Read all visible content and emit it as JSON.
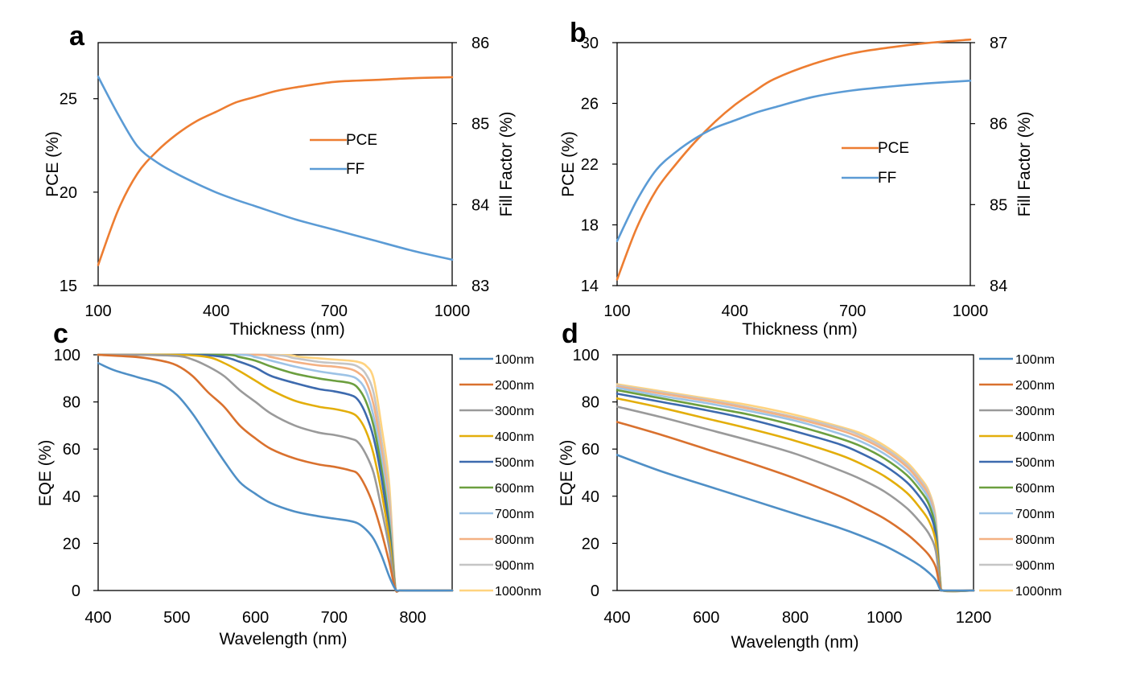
{
  "chart_data": [
    {
      "panel": "a",
      "type": "line",
      "xlabel": "Thickness (nm)",
      "ylabel": "PCE (%)",
      "y2label": "Fill Factor (%)",
      "xlim": [
        100,
        1000
      ],
      "ylim": [
        15,
        28
      ],
      "y2lim": [
        83,
        86
      ],
      "xticks": [
        100,
        400,
        700,
        1000
      ],
      "yticks": [
        15,
        20,
        25
      ],
      "y2ticks": [
        83,
        84,
        85,
        86
      ],
      "legend_position": "center-right",
      "colors": {
        "PCE": "#ED7D31",
        "FF": "#5B9BD5"
      },
      "series": [
        {
          "name": "PCE",
          "axis": "left",
          "x": [
            100,
            150,
            200,
            250,
            300,
            350,
            400,
            450,
            500,
            550,
            600,
            700,
            800,
            900,
            1000
          ],
          "y": [
            16.1,
            19.0,
            21.0,
            22.2,
            23.1,
            23.8,
            24.3,
            24.8,
            25.1,
            25.4,
            25.6,
            25.9,
            26.0,
            26.1,
            26.15
          ]
        },
        {
          "name": "FF",
          "axis": "right",
          "x": [
            100,
            150,
            200,
            250,
            300,
            350,
            400,
            450,
            500,
            600,
            700,
            800,
            900,
            1000
          ],
          "y": [
            85.58,
            85.12,
            84.72,
            84.52,
            84.38,
            84.26,
            84.15,
            84.06,
            83.98,
            83.82,
            83.69,
            83.56,
            83.43,
            83.32
          ]
        }
      ]
    },
    {
      "panel": "b",
      "type": "line",
      "xlabel": "Thickness (nm)",
      "ylabel": "PCE (%)",
      "y2label": "Fill Factor (%)",
      "xlim": [
        100,
        1000
      ],
      "ylim": [
        14,
        30
      ],
      "y2lim": [
        84,
        87
      ],
      "xticks": [
        100,
        400,
        700,
        1000
      ],
      "yticks": [
        14,
        18,
        22,
        26,
        30
      ],
      "y2ticks": [
        84,
        85,
        86,
        87
      ],
      "legend_position": "center-right",
      "colors": {
        "PCE": "#ED7D31",
        "FF": "#5B9BD5"
      },
      "series": [
        {
          "name": "PCE",
          "axis": "left",
          "x": [
            100,
            150,
            200,
            250,
            300,
            350,
            400,
            450,
            500,
            600,
            700,
            800,
            900,
            1000
          ],
          "y": [
            14.4,
            17.8,
            20.3,
            22.0,
            23.5,
            24.8,
            25.9,
            26.8,
            27.6,
            28.6,
            29.3,
            29.7,
            30.0,
            30.2
          ]
        },
        {
          "name": "FF",
          "axis": "right",
          "x": [
            100,
            150,
            200,
            250,
            300,
            350,
            400,
            450,
            500,
            600,
            700,
            800,
            900,
            1000
          ],
          "y": [
            84.55,
            85.05,
            85.43,
            85.65,
            85.82,
            85.95,
            86.04,
            86.13,
            86.2,
            86.33,
            86.41,
            86.46,
            86.5,
            86.53
          ]
        }
      ]
    },
    {
      "panel": "c",
      "type": "line",
      "xlabel": "Wavelength (nm)",
      "ylabel": "EQE (%)",
      "xlim": [
        400,
        850
      ],
      "ylim": [
        0,
        100
      ],
      "xticks": [
        400,
        500,
        600,
        700,
        800
      ],
      "yticks": [
        0,
        20,
        40,
        60,
        80,
        100
      ],
      "legend_position": "right",
      "series": [
        {
          "name": "100nm",
          "color": "#4F8FC6",
          "x": [
            400,
            420,
            450,
            480,
            500,
            520,
            540,
            560,
            580,
            600,
            620,
            650,
            680,
            700,
            720,
            730,
            740,
            750,
            760,
            770,
            778,
            785,
            850
          ],
          "y": [
            96.5,
            93.5,
            90.5,
            87.5,
            83,
            75,
            65,
            55,
            46,
            41,
            37,
            33.5,
            31.5,
            30.5,
            29.5,
            28.5,
            26,
            22,
            15,
            6,
            0.5,
            0,
            0
          ]
        },
        {
          "name": "200nm",
          "color": "#D9712E",
          "x": [
            400,
            450,
            480,
            500,
            520,
            540,
            560,
            580,
            600,
            620,
            650,
            680,
            700,
            720,
            730,
            740,
            750,
            760,
            770,
            778,
            785,
            850
          ],
          "y": [
            100,
            99,
            97.5,
            95.5,
            91,
            84,
            78,
            70,
            64.5,
            60,
            56,
            53.5,
            52.5,
            51,
            49.5,
            44,
            36,
            25,
            12,
            0.5,
            0,
            0
          ]
        },
        {
          "name": "300nm",
          "color": "#9A9A9A",
          "x": [
            400,
            450,
            500,
            520,
            540,
            560,
            580,
            600,
            620,
            650,
            680,
            700,
            720,
            730,
            740,
            750,
            760,
            770,
            778,
            785,
            850
          ],
          "y": [
            100,
            100,
            99.5,
            98,
            95,
            91,
            85,
            80,
            75,
            70,
            67,
            66,
            64.5,
            63,
            58,
            50,
            35,
            18,
            0.5,
            0,
            0
          ]
        },
        {
          "name": "400nm",
          "color": "#E3AE0B",
          "x": [
            400,
            500,
            540,
            560,
            580,
            600,
            620,
            650,
            680,
            700,
            720,
            730,
            740,
            750,
            760,
            770,
            778,
            785,
            850
          ],
          "y": [
            100,
            100,
            99,
            96.5,
            93,
            89,
            85,
            80.5,
            78,
            77,
            75.5,
            73.5,
            68,
            58,
            42,
            22,
            0.5,
            0,
            0
          ]
        },
        {
          "name": "500nm",
          "color": "#3D6AAE",
          "x": [
            400,
            520,
            560,
            580,
            600,
            620,
            650,
            680,
            700,
            720,
            730,
            740,
            750,
            760,
            770,
            778,
            785,
            850
          ],
          "y": [
            100,
            100,
            99,
            97,
            94.5,
            91,
            88,
            85.5,
            84.5,
            83,
            81,
            75,
            65,
            48,
            25,
            0.5,
            0,
            0
          ]
        },
        {
          "name": "600nm",
          "color": "#6C9F3F",
          "x": [
            400,
            560,
            580,
            600,
            620,
            650,
            680,
            700,
            720,
            730,
            740,
            750,
            760,
            770,
            778,
            785,
            850
          ],
          "y": [
            100,
            100,
            99,
            97.5,
            95,
            92,
            90,
            89,
            88,
            86,
            80.5,
            70,
            52,
            28,
            0.5,
            0,
            0
          ]
        },
        {
          "name": "700nm",
          "color": "#9DC3E6",
          "x": [
            400,
            580,
            600,
            620,
            650,
            680,
            700,
            720,
            730,
            740,
            750,
            760,
            770,
            778,
            785,
            850
          ],
          "y": [
            100,
            100,
            99,
            97.5,
            95,
            93,
            92,
            91,
            89.5,
            85,
            74,
            56,
            32,
            0.5,
            0,
            0
          ]
        },
        {
          "name": "800nm",
          "color": "#F4B183",
          "x": [
            400,
            600,
            620,
            650,
            680,
            700,
            720,
            730,
            740,
            750,
            760,
            770,
            778,
            785,
            850
          ],
          "y": [
            100,
            100,
            99,
            97,
            95.5,
            95,
            94,
            92.5,
            89,
            79,
            60,
            36,
            0.5,
            0,
            0
          ]
        },
        {
          "name": "900nm",
          "color": "#C5C5C5",
          "x": [
            400,
            610,
            650,
            680,
            700,
            720,
            730,
            740,
            750,
            760,
            770,
            778,
            785,
            850
          ],
          "y": [
            100,
            100,
            98.5,
            97,
            96.5,
            96,
            95,
            92,
            84,
            64,
            40,
            0.5,
            0,
            0
          ]
        },
        {
          "name": "1000nm",
          "color": "#FFD37F",
          "x": [
            400,
            620,
            660,
            700,
            720,
            730,
            740,
            750,
            760,
            770,
            778,
            785,
            850
          ],
          "y": [
            100,
            100,
            99,
            98,
            97.5,
            97,
            95.5,
            90,
            70,
            45,
            0.5,
            0,
            0
          ]
        }
      ]
    },
    {
      "panel": "d",
      "type": "line",
      "xlabel": "Wavelength (nm)",
      "ylabel": "EQE (%)",
      "xlim": [
        400,
        1200
      ],
      "ylim": [
        0,
        100
      ],
      "xticks": [
        400,
        600,
        800,
        1000,
        1200
      ],
      "yticks": [
        0,
        20,
        40,
        60,
        80,
        100
      ],
      "legend_position": "right",
      "series": [
        {
          "name": "100nm",
          "color": "#4F8FC6",
          "x": [
            400,
            500,
            600,
            700,
            800,
            900,
            950,
            1000,
            1050,
            1080,
            1100,
            1115,
            1125,
            1130,
            1200
          ],
          "y": [
            57.5,
            50.5,
            44.5,
            38.5,
            32.5,
            26.5,
            23,
            19,
            14,
            10.5,
            7.5,
            4.5,
            0.5,
            0,
            0
          ]
        },
        {
          "name": "200nm",
          "color": "#D9712E",
          "x": [
            400,
            500,
            600,
            700,
            800,
            900,
            950,
            1000,
            1050,
            1080,
            1100,
            1115,
            1125,
            1130,
            1200
          ],
          "y": [
            71.5,
            66,
            60,
            54,
            47.5,
            40,
            35.5,
            30.5,
            24,
            19,
            15,
            10,
            1,
            0,
            0
          ]
        },
        {
          "name": "300nm",
          "color": "#9A9A9A",
          "x": [
            400,
            500,
            600,
            700,
            800,
            900,
            950,
            1000,
            1050,
            1080,
            1100,
            1115,
            1125,
            1130,
            1200
          ],
          "y": [
            78,
            73.5,
            68.5,
            63.5,
            58,
            51,
            47,
            42,
            35,
            29,
            24,
            17,
            2,
            0,
            0
          ]
        },
        {
          "name": "400nm",
          "color": "#E3AE0B",
          "x": [
            400,
            500,
            600,
            700,
            800,
            900,
            950,
            1000,
            1050,
            1080,
            1100,
            1115,
            1125,
            1130,
            1200
          ],
          "y": [
            81.5,
            77.5,
            73,
            68.5,
            63.5,
            57.5,
            53.5,
            48.5,
            41.5,
            35,
            29.5,
            21,
            3,
            0,
            0
          ]
        },
        {
          "name": "500nm",
          "color": "#3D6AAE",
          "x": [
            400,
            500,
            600,
            700,
            800,
            900,
            950,
            1000,
            1050,
            1080,
            1100,
            1115,
            1125,
            1130,
            1200
          ],
          "y": [
            83.5,
            80,
            76.5,
            72.5,
            67.5,
            62,
            58,
            53,
            46,
            39.5,
            33.5,
            24,
            3.5,
            0,
            0
          ]
        },
        {
          "name": "600nm",
          "color": "#6C9F3F",
          "x": [
            400,
            500,
            600,
            700,
            800,
            900,
            950,
            1000,
            1050,
            1080,
            1100,
            1115,
            1125,
            1130,
            1200
          ],
          "y": [
            85,
            81.5,
            78,
            74.5,
            70,
            64.5,
            61,
            56,
            49,
            42.5,
            36.5,
            26,
            4,
            0,
            0
          ]
        },
        {
          "name": "700nm",
          "color": "#9DC3E6",
          "x": [
            400,
            500,
            600,
            700,
            800,
            900,
            950,
            1000,
            1050,
            1080,
            1100,
            1115,
            1125,
            1130,
            1200
          ],
          "y": [
            86,
            82.5,
            79.5,
            76,
            72,
            66.5,
            63,
            58,
            51,
            44.5,
            38.5,
            28,
            4.5,
            0,
            0
          ]
        },
        {
          "name": "800nm",
          "color": "#F4B183",
          "x": [
            400,
            500,
            600,
            700,
            800,
            900,
            950,
            1000,
            1050,
            1080,
            1100,
            1115,
            1125,
            1130,
            1200
          ],
          "y": [
            86.5,
            83.5,
            80.5,
            77,
            73,
            68,
            64.5,
            59.5,
            52.5,
            46,
            40,
            29,
            5,
            0,
            0
          ]
        },
        {
          "name": "900nm",
          "color": "#C5C5C5",
          "x": [
            400,
            500,
            600,
            700,
            800,
            900,
            950,
            1000,
            1050,
            1080,
            1100,
            1115,
            1125,
            1130,
            1200
          ],
          "y": [
            87,
            84,
            81,
            77.5,
            73.5,
            69,
            65.5,
            60.5,
            53.5,
            47,
            41,
            30,
            5,
            0,
            0
          ]
        },
        {
          "name": "1000nm",
          "color": "#FFD37F",
          "x": [
            400,
            500,
            600,
            700,
            800,
            900,
            950,
            1000,
            1050,
            1080,
            1100,
            1115,
            1125,
            1130,
            1200
          ],
          "y": [
            87.5,
            84.5,
            81.5,
            78.5,
            74.5,
            69.5,
            66.5,
            61.5,
            54.5,
            48,
            42,
            31,
            5.5,
            0,
            0
          ]
        }
      ]
    }
  ]
}
